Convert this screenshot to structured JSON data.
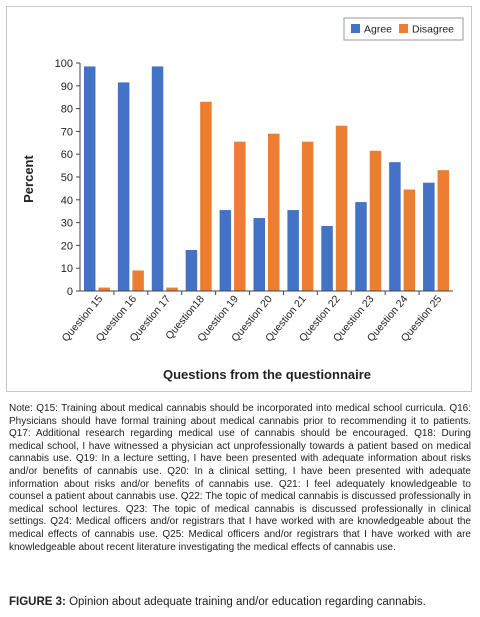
{
  "chart_data": {
    "type": "bar",
    "title": "",
    "xlabel": "Questions from the questionnaire",
    "ylabel": "Percent",
    "ylim": [
      0,
      100
    ],
    "yticks": [
      0,
      10,
      20,
      30,
      40,
      50,
      60,
      70,
      80,
      90,
      100
    ],
    "grid": false,
    "legend_position": "top-right",
    "categories": [
      "Question 15",
      "Question 16",
      "Question 17",
      "Question18",
      "Question 19",
      "Question 20",
      "Question 21",
      "Question 22",
      "Question 23",
      "Question 24",
      "Question 25"
    ],
    "series": [
      {
        "name": "Agree",
        "color": "#4472C4",
        "values": [
          98.5,
          91.5,
          98.5,
          18,
          35.5,
          32,
          35.5,
          28.5,
          39,
          56.5,
          47.5
        ]
      },
      {
        "name": "Disagree",
        "color": "#ED7D31",
        "values": [
          1.5,
          9,
          1.5,
          83,
          65.5,
          69,
          65.5,
          72.5,
          61.5,
          44.5,
          53
        ]
      }
    ]
  },
  "note": "Note: Q15: Training about medical cannabis should be incorporated into medical school curricula. Q16: Physicians should have formal training about medical cannabis prior to recommending it to patients. Q17: Additional research regarding medical use of cannabis should be encouraged. Q18: During medical school, I have witnessed a physician act unprofessionally towards a patient based on medical cannabis use. Q19: In a lecture setting, I have been presented with adequate information about risks and/or benefits of cannabis use. Q20: In a clinical setting, I have been presented with adequate information about risks and/or benefits of cannabis use. Q21: I feel adequately knowledgeable to counsel a patient about cannabis use. Q22: The topic of medical cannabis is discussed professionally in medical school lectures. Q23: The topic of medical cannabis is discussed professionally in clinical settings. Q24: Medical officers and/or registrars that I have worked with are knowledgeable about the medical effects of cannabis use. Q25: Medical officers and/or registrars that I have worked with are knowledgeable about recent literature investigating the medical effects of cannabis use.",
  "caption": {
    "label": "FIGURE 3:",
    "text": " Opinion about adequate training and/or education regarding cannabis."
  }
}
